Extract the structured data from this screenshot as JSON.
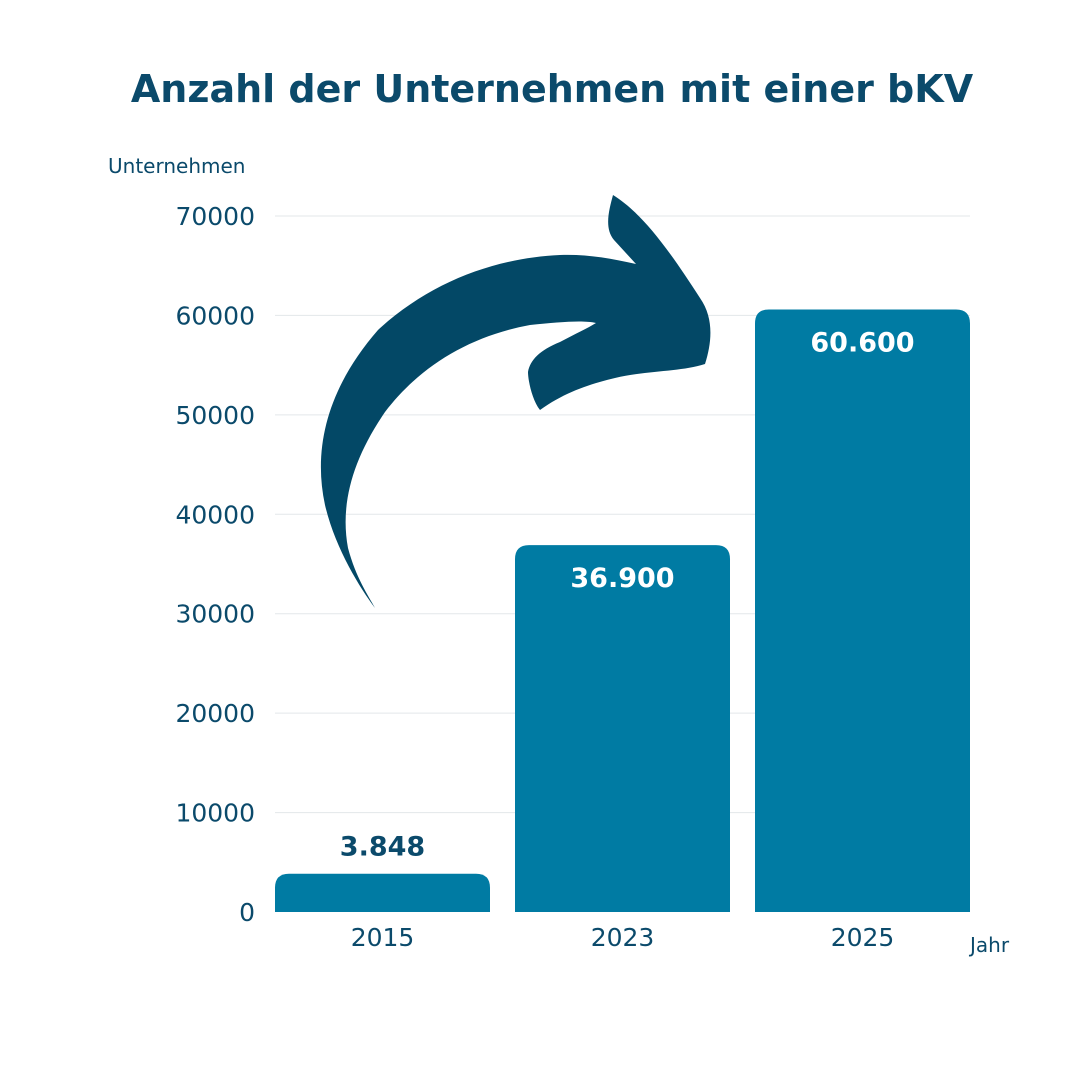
{
  "colors": {
    "title": "#0b4a6b",
    "text": "#0b4a6b",
    "bar": "#007ba3",
    "arrow": "#034866",
    "grid": "#e3e7ea",
    "label_inside": "#ffffff",
    "label_outside": "#0b4a6b"
  },
  "decoration": {
    "arrow": "curved-arrow-icon"
  },
  "chart_data": {
    "type": "bar",
    "title": "Anzahl der Unternehmen mit einer bKV",
    "ylabel": "Unternehmen",
    "xlabel": "Jahr",
    "categories": [
      "2015",
      "2023",
      "2025"
    ],
    "values": [
      3848,
      36900,
      60600
    ],
    "value_labels": [
      "3.848",
      "36.900",
      "60.600"
    ],
    "ylim": [
      0,
      70000
    ],
    "yticks": [
      0,
      10000,
      20000,
      30000,
      40000,
      50000,
      60000,
      70000
    ],
    "ytick_labels": [
      "0",
      "10000",
      "20000",
      "30000",
      "40000",
      "50000",
      "60000",
      "70000"
    ],
    "grid": true,
    "legend": "none"
  }
}
